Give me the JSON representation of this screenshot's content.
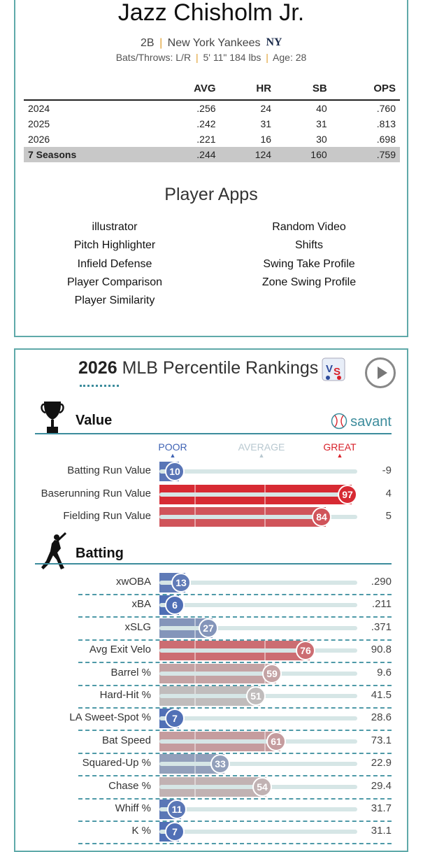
{
  "player": {
    "name": "Jazz Chisholm Jr.",
    "position": "2B",
    "team": "New York Yankees",
    "bats_throws": "Bats/Throws: L/R",
    "height_weight": "5' 11\" 184 lbs",
    "age": "Age: 28",
    "separator": "|"
  },
  "stats_table": {
    "headers": [
      "",
      "AVG",
      "HR",
      "SB",
      "OPS"
    ],
    "rows": [
      [
        "2024",
        ".256",
        "24",
        "40",
        ".760"
      ],
      [
        "2025",
        ".242",
        "31",
        "31",
        ".813"
      ],
      [
        "2026",
        ".221",
        "16",
        "30",
        ".698"
      ],
      [
        "7 Seasons",
        ".244",
        "124",
        "160",
        ".759"
      ]
    ]
  },
  "player_apps": {
    "title": "Player Apps",
    "left": [
      "illustrator",
      "Pitch Highlighter",
      "Infield Defense",
      "Player Comparison",
      "Player Similarity"
    ],
    "right": [
      "Random Video",
      "Shifts",
      "Swing Take Profile",
      "Zone Swing Profile"
    ]
  },
  "percentile": {
    "year": "2026",
    "title": "MLB Percentile Rankings",
    "brand": "savant",
    "scale": {
      "poor": "POOR",
      "average": "AVERAGE",
      "great": "GREAT"
    },
    "colors": {
      "poor": "#3f63b4",
      "great": "#d8212a",
      "average": "#bfbfbf",
      "accent": "#3c8c9c"
    },
    "value_section": {
      "label": "Value",
      "rows": [
        {
          "name": "Batting Run Value",
          "pct": 10,
          "value": "-9"
        },
        {
          "name": "Baserunning Run Value",
          "pct": 97,
          "value": "4"
        },
        {
          "name": "Fielding Run Value",
          "pct": 84,
          "value": "5"
        }
      ]
    },
    "batting_section": {
      "label": "Batting",
      "rows": [
        {
          "name": "xwOBA",
          "pct": 13,
          "value": ".290"
        },
        {
          "name": "xBA",
          "pct": 6,
          "value": ".211"
        },
        {
          "name": "xSLG",
          "pct": 27,
          "value": ".371"
        },
        {
          "name": "Avg Exit Velo",
          "pct": 76,
          "value": "90.8"
        },
        {
          "name": "Barrel %",
          "pct": 59,
          "value": "9.6"
        },
        {
          "name": "Hard-Hit %",
          "pct": 51,
          "value": "41.5"
        },
        {
          "name": "LA Sweet-Spot %",
          "pct": 7,
          "value": "28.6"
        },
        {
          "name": "Bat Speed",
          "pct": 61,
          "value": "73.1"
        },
        {
          "name": "Squared-Up %",
          "pct": 33,
          "value": "22.9"
        },
        {
          "name": "Chase %",
          "pct": 54,
          "value": "29.4"
        },
        {
          "name": "Whiff %",
          "pct": 11,
          "value": "31.7"
        },
        {
          "name": "K %",
          "pct": 7,
          "value": "31.1"
        }
      ]
    }
  }
}
